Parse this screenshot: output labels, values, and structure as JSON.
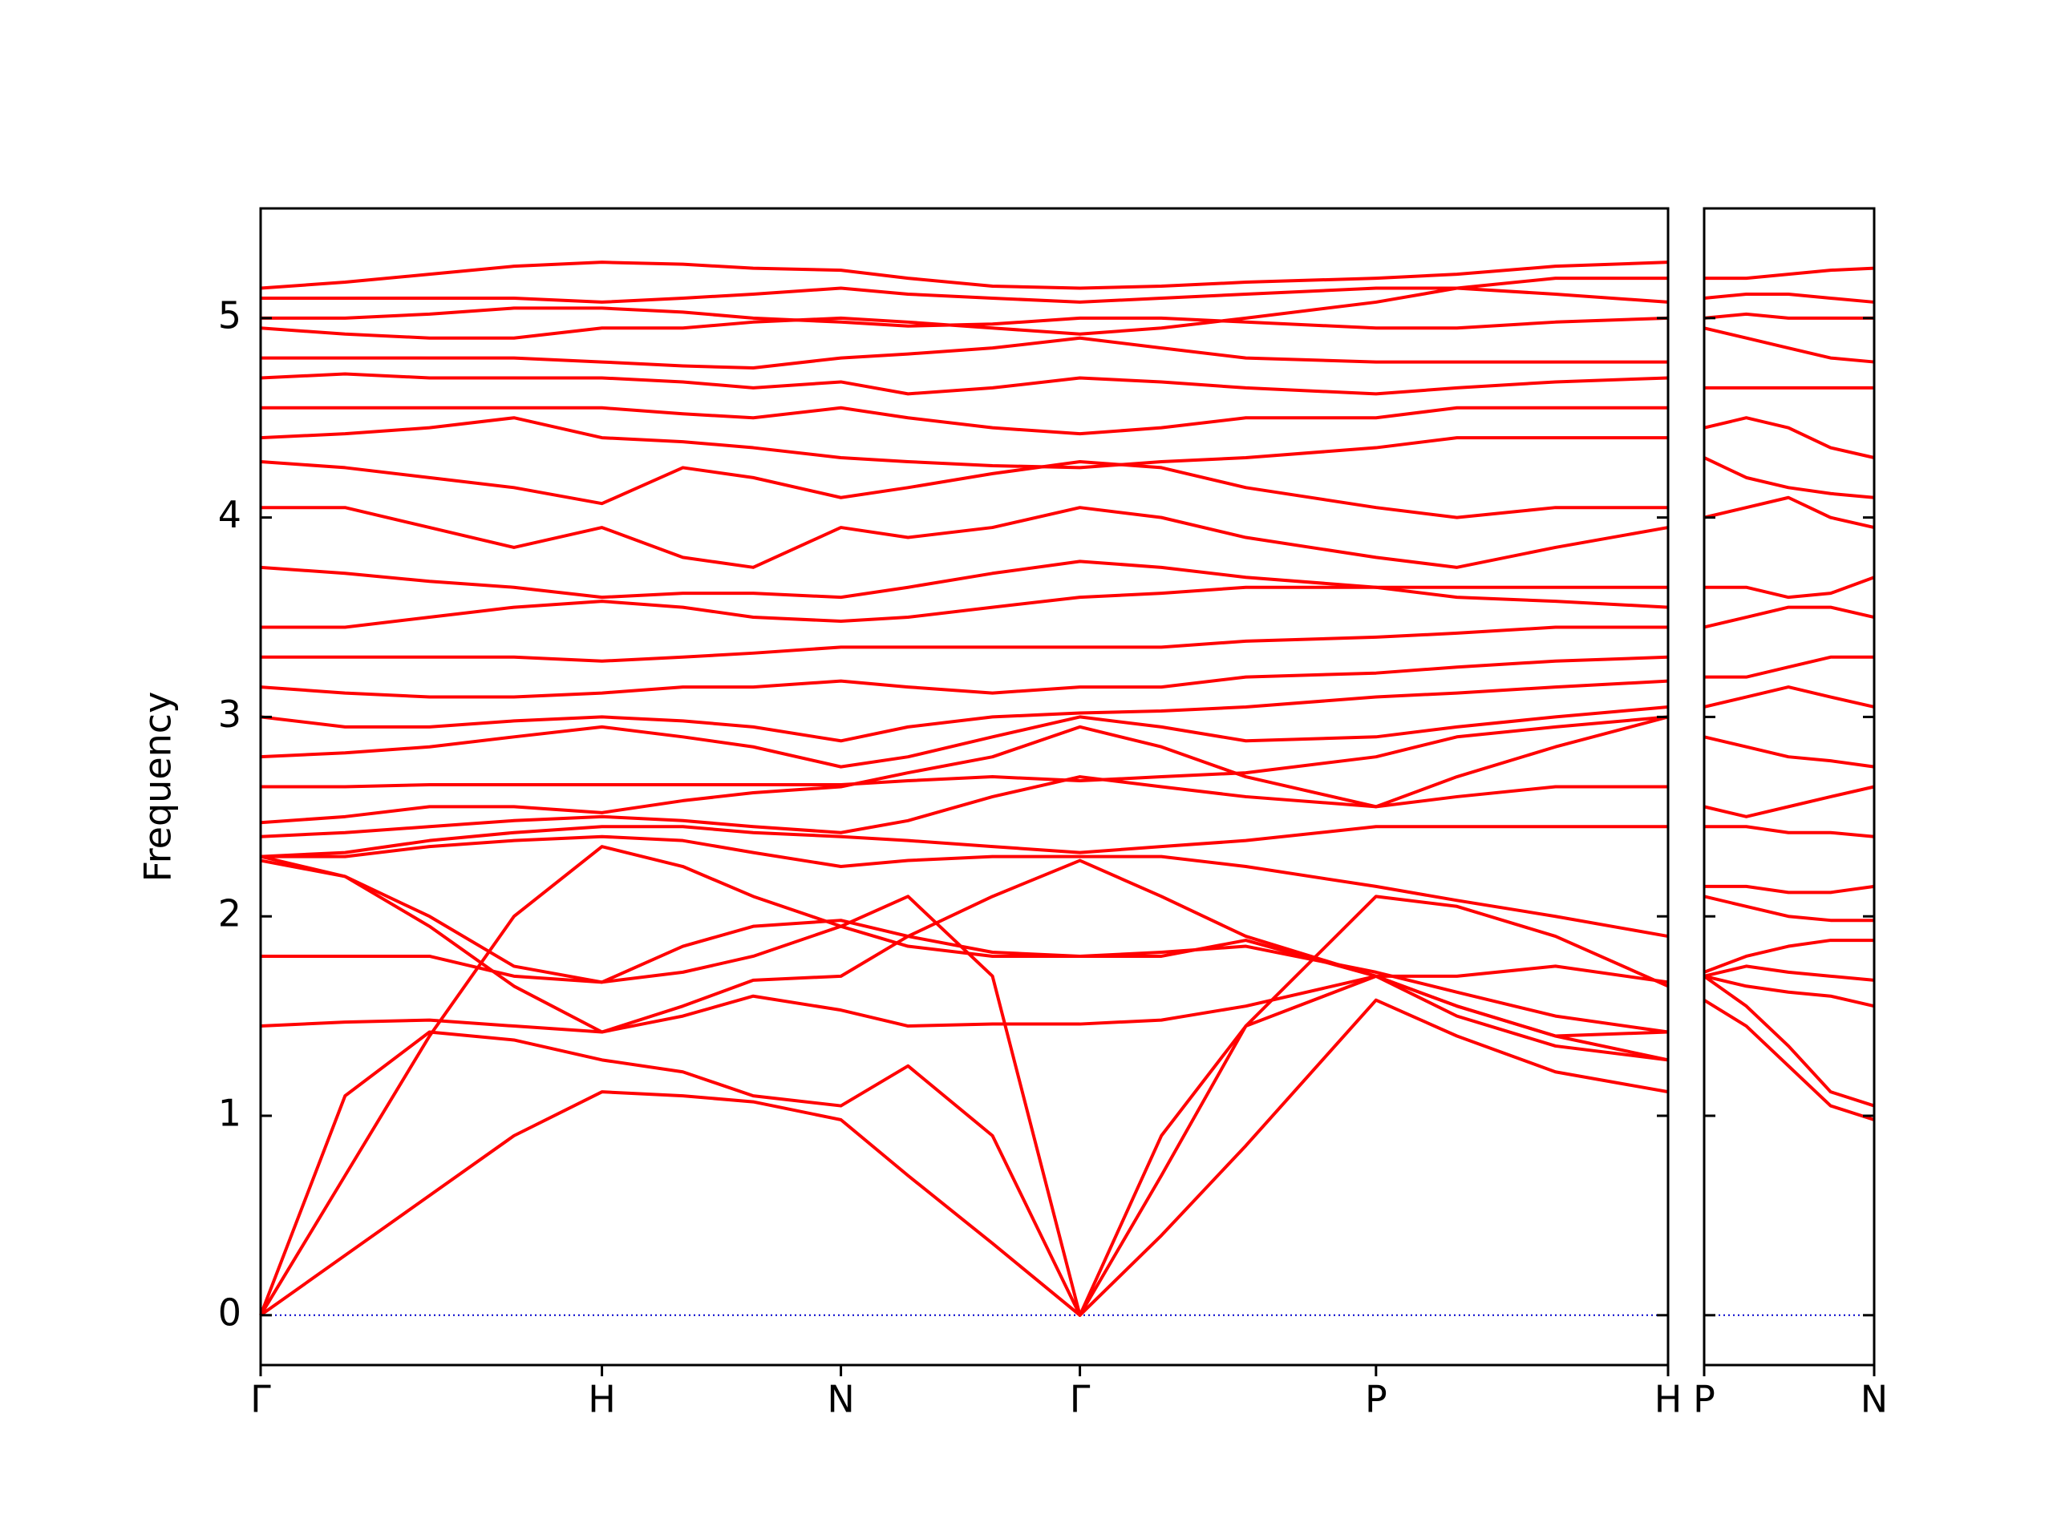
{
  "chart_data": [
    {
      "type": "line",
      "y_label": "Frequency",
      "color": "#ff0000",
      "xlim": [
        0,
        1.0
      ],
      "ylim": [
        -0.25,
        5.55
      ],
      "xticks": [
        {
          "value": 0,
          "label": "Γ"
        },
        {
          "value": 0.2425,
          "label": "H"
        },
        {
          "value": 0.4123,
          "label": "N"
        },
        {
          "value": 0.5821,
          "label": "Γ"
        },
        {
          "value": 0.7925,
          "label": "P"
        },
        {
          "value": 1.0,
          "label": "H"
        }
      ],
      "yticks": [
        0,
        1,
        2,
        3,
        4,
        5
      ],
      "ytick_labels": true,
      "reference_line": {
        "value": 0,
        "color": "#0000cc"
      },
      "x": [
        0,
        0.06,
        0.12,
        0.18,
        0.2425,
        0.3,
        0.35,
        0.4123,
        0.46,
        0.52,
        0.5821,
        0.64,
        0.7,
        0.7925,
        0.85,
        0.92,
        1.0
      ],
      "series": [
        {
          "values": [
            0,
            0.3,
            0.6,
            0.9,
            1.12,
            1.1,
            1.07,
            0.98,
            0.7,
            0.36,
            0,
            0.4,
            0.85,
            1.58,
            1.4,
            1.22,
            1.12
          ]
        },
        {
          "values": [
            0,
            1.1,
            1.42,
            1.38,
            1.28,
            1.22,
            1.1,
            1.05,
            1.25,
            0.9,
            0,
            0.9,
            1.45,
            1.7,
            1.5,
            1.35,
            1.28
          ]
        },
        {
          "values": [
            0,
            0.7,
            1.4,
            2.0,
            2.35,
            2.25,
            2.1,
            1.95,
            2.1,
            1.7,
            0,
            0.7,
            1.45,
            2.1,
            2.05,
            1.9,
            1.65
          ]
        },
        {
          "values": [
            1.45,
            1.47,
            1.48,
            1.45,
            1.42,
            1.5,
            1.6,
            1.53,
            1.45,
            1.46,
            1.46,
            1.48,
            1.55,
            1.7,
            1.55,
            1.4,
            1.42
          ]
        },
        {
          "values": [
            1.8,
            1.8,
            1.8,
            1.7,
            1.67,
            1.72,
            1.8,
            1.95,
            1.85,
            1.8,
            1.8,
            1.82,
            1.85,
            1.72,
            1.62,
            1.5,
            1.42
          ]
        },
        {
          "values": [
            2.3,
            2.2,
            2.0,
            1.75,
            1.67,
            1.85,
            1.95,
            1.98,
            1.9,
            1.82,
            1.8,
            1.8,
            1.88,
            1.7,
            1.7,
            1.75,
            1.67
          ]
        },
        {
          "values": [
            2.28,
            2.2,
            1.95,
            1.65,
            1.42,
            1.55,
            1.68,
            1.7,
            1.9,
            2.1,
            2.28,
            2.1,
            1.9,
            1.7,
            1.55,
            1.4,
            1.28
          ]
        },
        {
          "values": [
            2.3,
            2.3,
            2.35,
            2.38,
            2.4,
            2.38,
            2.32,
            2.25,
            2.28,
            2.3,
            2.3,
            2.3,
            2.25,
            2.15,
            2.08,
            2.0,
            1.9
          ]
        },
        {
          "values": [
            2.3,
            2.32,
            2.38,
            2.42,
            2.45,
            2.45,
            2.42,
            2.4,
            2.38,
            2.35,
            2.32,
            2.35,
            2.38,
            2.45,
            2.45,
            2.45,
            2.45
          ]
        },
        {
          "values": [
            2.4,
            2.42,
            2.45,
            2.48,
            2.5,
            2.48,
            2.45,
            2.42,
            2.48,
            2.6,
            2.7,
            2.65,
            2.6,
            2.55,
            2.6,
            2.65,
            2.65
          ]
        },
        {
          "values": [
            2.47,
            2.5,
            2.55,
            2.55,
            2.52,
            2.58,
            2.62,
            2.65,
            2.72,
            2.8,
            2.95,
            2.85,
            2.7,
            2.55,
            2.7,
            2.85,
            3.0
          ]
        },
        {
          "values": [
            2.65,
            2.65,
            2.66,
            2.66,
            2.66,
            2.66,
            2.66,
            2.66,
            2.68,
            2.7,
            2.68,
            2.7,
            2.72,
            2.8,
            2.9,
            2.95,
            3.0
          ]
        },
        {
          "values": [
            2.8,
            2.82,
            2.85,
            2.9,
            2.95,
            2.9,
            2.85,
            2.75,
            2.8,
            2.9,
            3.0,
            2.95,
            2.88,
            2.9,
            2.95,
            3.0,
            3.05
          ]
        },
        {
          "values": [
            3.0,
            2.95,
            2.95,
            2.98,
            3.0,
            2.98,
            2.95,
            2.88,
            2.95,
            3.0,
            3.02,
            3.03,
            3.05,
            3.1,
            3.12,
            3.15,
            3.18
          ]
        },
        {
          "values": [
            3.15,
            3.12,
            3.1,
            3.1,
            3.12,
            3.15,
            3.15,
            3.18,
            3.15,
            3.12,
            3.15,
            3.15,
            3.2,
            3.22,
            3.25,
            3.28,
            3.3
          ]
        },
        {
          "values": [
            3.3,
            3.3,
            3.3,
            3.3,
            3.28,
            3.3,
            3.32,
            3.35,
            3.35,
            3.35,
            3.35,
            3.35,
            3.38,
            3.4,
            3.42,
            3.45,
            3.45
          ]
        },
        {
          "values": [
            3.45,
            3.45,
            3.5,
            3.55,
            3.58,
            3.55,
            3.5,
            3.48,
            3.5,
            3.55,
            3.6,
            3.62,
            3.65,
            3.65,
            3.6,
            3.58,
            3.55
          ]
        },
        {
          "values": [
            3.75,
            3.72,
            3.68,
            3.65,
            3.6,
            3.62,
            3.62,
            3.6,
            3.65,
            3.72,
            3.78,
            3.75,
            3.7,
            3.65,
            3.65,
            3.65,
            3.65
          ]
        },
        {
          "values": [
            4.05,
            4.05,
            3.95,
            3.85,
            3.95,
            3.8,
            3.75,
            3.95,
            3.9,
            3.95,
            4.05,
            4.0,
            3.9,
            3.8,
            3.75,
            3.85,
            3.95
          ]
        },
        {
          "values": [
            4.28,
            4.25,
            4.2,
            4.15,
            4.07,
            4.25,
            4.2,
            4.1,
            4.15,
            4.22,
            4.28,
            4.25,
            4.15,
            4.05,
            4.0,
            4.05,
            4.05
          ]
        },
        {
          "values": [
            4.4,
            4.42,
            4.45,
            4.5,
            4.4,
            4.38,
            4.35,
            4.3,
            4.28,
            4.26,
            4.25,
            4.28,
            4.3,
            4.35,
            4.4,
            4.4,
            4.4
          ]
        },
        {
          "values": [
            4.55,
            4.55,
            4.55,
            4.55,
            4.55,
            4.52,
            4.5,
            4.55,
            4.5,
            4.45,
            4.42,
            4.45,
            4.5,
            4.5,
            4.55,
            4.55,
            4.55
          ]
        },
        {
          "values": [
            4.7,
            4.72,
            4.7,
            4.7,
            4.7,
            4.68,
            4.65,
            4.68,
            4.62,
            4.65,
            4.7,
            4.68,
            4.65,
            4.62,
            4.65,
            4.68,
            4.7
          ]
        },
        {
          "values": [
            4.8,
            4.8,
            4.8,
            4.8,
            4.78,
            4.76,
            4.75,
            4.8,
            4.82,
            4.85,
            4.9,
            4.85,
            4.8,
            4.78,
            4.78,
            4.78,
            4.78
          ]
        },
        {
          "values": [
            4.95,
            4.92,
            4.9,
            4.9,
            4.95,
            4.95,
            4.98,
            5.0,
            4.98,
            4.95,
            4.92,
            4.95,
            5.0,
            5.08,
            5.15,
            5.2,
            5.2
          ]
        },
        {
          "values": [
            5.0,
            5.0,
            5.02,
            5.05,
            5.05,
            5.03,
            5.0,
            4.98,
            4.96,
            4.97,
            5.0,
            5.0,
            4.98,
            4.95,
            4.95,
            4.98,
            5.0
          ]
        },
        {
          "values": [
            5.1,
            5.1,
            5.1,
            5.1,
            5.08,
            5.1,
            5.12,
            5.15,
            5.12,
            5.1,
            5.08,
            5.1,
            5.12,
            5.15,
            5.15,
            5.12,
            5.08
          ]
        },
        {
          "values": [
            5.15,
            5.18,
            5.22,
            5.26,
            5.28,
            5.27,
            5.25,
            5.24,
            5.2,
            5.16,
            5.15,
            5.16,
            5.18,
            5.2,
            5.22,
            5.26,
            5.28
          ]
        }
      ]
    },
    {
      "type": "line",
      "color": "#ff0000",
      "xlim": [
        0,
        0.121
      ],
      "ylim": [
        -0.25,
        5.55
      ],
      "xticks": [
        {
          "value": 0,
          "label": "P"
        },
        {
          "value": 0.121,
          "label": "N"
        }
      ],
      "yticks": [
        0,
        1,
        2,
        3,
        4,
        5
      ],
      "ytick_labels": false,
      "reference_line": {
        "value": 0,
        "color": "#0000cc"
      },
      "x": [
        0,
        0.03,
        0.06,
        0.09,
        0.121
      ],
      "series": [
        {
          "values": [
            1.58,
            1.45,
            1.25,
            1.05,
            0.98
          ]
        },
        {
          "values": [
            1.7,
            1.55,
            1.35,
            1.12,
            1.05
          ]
        },
        {
          "values": [
            1.7,
            1.65,
            1.62,
            1.6,
            1.55
          ]
        },
        {
          "values": [
            1.7,
            1.75,
            1.72,
            1.7,
            1.68
          ]
        },
        {
          "values": [
            1.72,
            1.8,
            1.85,
            1.88,
            1.88
          ]
        },
        {
          "values": [
            2.1,
            2.05,
            2.0,
            1.98,
            1.98
          ]
        },
        {
          "values": [
            2.15,
            2.15,
            2.12,
            2.12,
            2.15
          ]
        },
        {
          "values": [
            2.45,
            2.45,
            2.42,
            2.42,
            2.4
          ]
        },
        {
          "values": [
            2.55,
            2.5,
            2.55,
            2.6,
            2.65
          ]
        },
        {
          "values": [
            2.9,
            2.85,
            2.8,
            2.78,
            2.75
          ]
        },
        {
          "values": [
            3.05,
            3.1,
            3.15,
            3.1,
            3.05
          ]
        },
        {
          "values": [
            3.2,
            3.2,
            3.25,
            3.3,
            3.3
          ]
        },
        {
          "values": [
            3.45,
            3.5,
            3.55,
            3.55,
            3.5
          ]
        },
        {
          "values": [
            3.65,
            3.65,
            3.6,
            3.62,
            3.7
          ]
        },
        {
          "values": [
            4.0,
            4.05,
            4.1,
            4.0,
            3.95
          ]
        },
        {
          "values": [
            4.3,
            4.2,
            4.15,
            4.12,
            4.1
          ]
        },
        {
          "values": [
            4.45,
            4.5,
            4.45,
            4.35,
            4.3
          ]
        },
        {
          "values": [
            4.65,
            4.65,
            4.65,
            4.65,
            4.65
          ]
        },
        {
          "values": [
            4.95,
            4.9,
            4.85,
            4.8,
            4.78
          ]
        },
        {
          "values": [
            5.0,
            5.02,
            5.0,
            5.0,
            5.0
          ]
        },
        {
          "values": [
            5.1,
            5.12,
            5.12,
            5.1,
            5.08
          ]
        },
        {
          "values": [
            5.2,
            5.2,
            5.22,
            5.24,
            5.25
          ]
        }
      ]
    }
  ]
}
